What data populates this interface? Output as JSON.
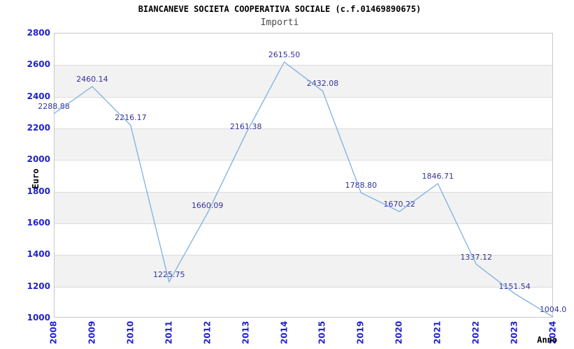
{
  "chart_data": {
    "type": "line",
    "title": "BIANCANEVE SOCIETA COOPERATIVA SOCIALE (c.f.01469890675)",
    "subtitle": "Importi",
    "xlabel": "Anno",
    "ylabel": "Euro",
    "categories": [
      "2008",
      "2009",
      "2010",
      "2011",
      "2012",
      "2013",
      "2014",
      "2015",
      "2019",
      "2020",
      "2021",
      "2022",
      "2023",
      "2024"
    ],
    "series": [
      {
        "name": "Importi",
        "values": [
          2288.88,
          2460.14,
          2216.17,
          1225.75,
          1660.09,
          2161.38,
          2615.5,
          2432.08,
          1788.8,
          1670.22,
          1846.71,
          1337.12,
          1151.54,
          1004.0
        ],
        "point_labels": [
          "2288.88",
          "2460.14",
          "2216.17",
          "1225.75",
          "1660.09",
          "2161.38",
          "2615.50",
          "2432.08",
          "1788.80",
          "1670.22",
          "1846.71",
          "1337.12",
          "1151.54",
          "1004.0"
        ]
      }
    ],
    "ylim": [
      1000,
      2800
    ],
    "y_step": 200,
    "y_tick_labels": [
      "1000",
      "1200",
      "1400",
      "1600",
      "1800",
      "2000",
      "2200",
      "2400",
      "2600",
      "2800"
    ],
    "grid": "horizontal",
    "background_bands": "alternating horizontal stripes, gray between 2600-2400, 2200-2000, 1800-1600, 1400-1200",
    "legend": "none",
    "colors": {
      "line": "#7fafe0",
      "data_label": "#333399",
      "tick_label": "#2222cc",
      "band": "#f2f2f2",
      "gridline": "#dcdcdc",
      "plot_border": "#c9c9c9",
      "title": "#000000",
      "subtitle": "#4a4a4a",
      "axis_title": "#333333",
      "background": "#ffffff"
    }
  }
}
